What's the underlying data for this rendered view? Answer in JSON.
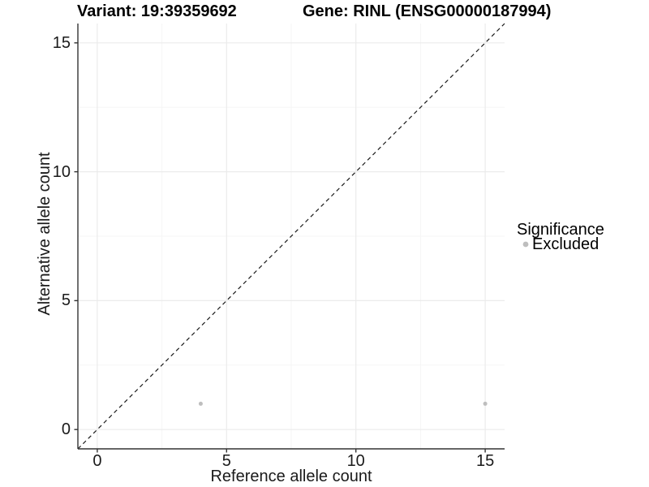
{
  "titles": {
    "variant": "Variant: 19:39359692",
    "gene": "Gene: RINL (ENSG00000187994)"
  },
  "chart_data": {
    "type": "scatter",
    "title": "Variant: 19:39359692    Gene: RINL (ENSG00000187994)",
    "xlabel": "Reference allele count",
    "ylabel": "Alternative allele count",
    "xlim": [
      -0.75,
      15.75
    ],
    "ylim": [
      -0.75,
      15.75
    ],
    "x_major_ticks": [
      0,
      5,
      10,
      15
    ],
    "y_major_ticks": [
      0,
      5,
      10,
      15
    ],
    "x_minor_ticks": [
      2.5,
      7.5,
      12.5
    ],
    "y_minor_ticks": [
      2.5,
      7.5,
      12.5
    ],
    "grid": {
      "major_color": "#ebebeb",
      "minor_color": "#f5f5f5",
      "background": "#ffffff",
      "axis_line_color": "#333333"
    },
    "identity_line": {
      "style": "dashed",
      "slope": 1,
      "intercept": 0,
      "color": "#1a1a1a"
    },
    "series": [
      {
        "name": "Excluded",
        "color": "#bebebe",
        "points": [
          {
            "x": 4,
            "y": 1
          },
          {
            "x": 15,
            "y": 1
          }
        ]
      }
    ],
    "legend": {
      "title": "Significance",
      "position": "right",
      "items": [
        {
          "label": "Excluded",
          "color": "#bebebe"
        }
      ]
    }
  }
}
